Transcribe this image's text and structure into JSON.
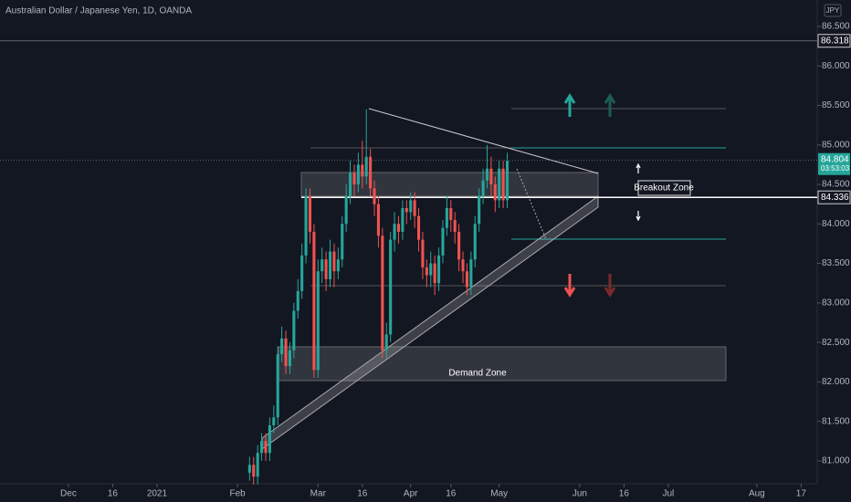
{
  "chart_data": {
    "type": "candlestick",
    "title": "Australian Dollar / Japanese Yen, 1D, OANDA",
    "currency": "JPY",
    "up_color": "#26a69a",
    "down_color": "#ef5350",
    "x": [
      45,
      46,
      47,
      48,
      49,
      50,
      51,
      52,
      53,
      54,
      55,
      56,
      57,
      58,
      59,
      60,
      61,
      62,
      63,
      64,
      65,
      66,
      67,
      68,
      69,
      70,
      71,
      72,
      73,
      74,
      75,
      76,
      77,
      78,
      79,
      80,
      81,
      82,
      83,
      84,
      85,
      86,
      87,
      88,
      89,
      90,
      91,
      92,
      93,
      94,
      95,
      96,
      97,
      98,
      99,
      100,
      101,
      102,
      103,
      104,
      105,
      106,
      107,
      108,
      109
    ],
    "open": [
      80.85,
      80.95,
      80.8,
      81.1,
      81.25,
      81.1,
      81.45,
      81.55,
      82.35,
      82.55,
      82.2,
      82.4,
      82.9,
      83.15,
      83.6,
      84.35,
      83.9,
      82.15,
      83.4,
      83.55,
      83.3,
      83.65,
      83.4,
      83.55,
      84.0,
      84.35,
      84.65,
      84.5,
      84.75,
      84.6,
      84.85,
      84.45,
      84.25,
      83.85,
      82.4,
      82.6,
      83.8,
      84.0,
      83.9,
      84.2,
      84.15,
      84.3,
      84.1,
      83.8,
      83.45,
      83.35,
      83.5,
      83.25,
      83.6,
      83.95,
      84.2,
      84.05,
      83.9,
      83.55,
      83.4,
      83.2,
      83.55,
      84.0,
      84.35,
      84.55,
      84.7,
      84.5,
      84.3,
      84.7,
      84.3
    ],
    "high": [
      81.05,
      81.05,
      81.2,
      81.35,
      81.35,
      81.55,
      81.7,
      82.45,
      82.7,
      82.65,
      82.5,
      83.0,
      83.3,
      83.75,
      84.45,
      84.45,
      84.0,
      83.55,
      83.7,
      83.65,
      83.8,
      83.75,
      83.7,
      84.1,
      84.5,
      84.8,
      84.75,
      84.9,
      85.05,
      85.45,
      84.95,
      84.55,
      84.35,
      83.95,
      82.75,
      83.9,
      84.15,
      84.1,
      84.3,
      84.3,
      84.4,
      84.4,
      84.2,
      83.9,
      83.55,
      83.65,
      83.6,
      83.7,
      84.05,
      84.35,
      84.3,
      84.15,
      84.0,
      83.65,
      83.5,
      83.65,
      84.1,
      84.45,
      84.7,
      85.0,
      84.85,
      84.6,
      84.8,
      84.8,
      84.9
    ],
    "low": [
      80.75,
      80.7,
      80.7,
      81.0,
      81.0,
      81.0,
      81.35,
      81.45,
      82.25,
      82.1,
      82.1,
      82.3,
      82.8,
      83.05,
      83.5,
      83.75,
      82.05,
      82.05,
      83.25,
      83.15,
      83.2,
      83.2,
      83.3,
      83.45,
      83.9,
      84.25,
      84.35,
      84.4,
      84.45,
      84.5,
      84.35,
      84.1,
      83.7,
      82.3,
      82.3,
      82.5,
      83.65,
      83.75,
      83.8,
      84.0,
      84.05,
      83.95,
      83.65,
      83.3,
      83.2,
      83.2,
      83.1,
      83.15,
      83.5,
      83.85,
      83.9,
      83.75,
      83.4,
      83.25,
      83.1,
      83.1,
      83.45,
      83.9,
      84.25,
      84.45,
      84.35,
      84.15,
      84.2,
      84.2,
      84.2
    ],
    "close": [
      80.95,
      80.8,
      81.1,
      81.25,
      81.1,
      81.45,
      81.55,
      82.35,
      82.55,
      82.2,
      82.4,
      82.9,
      83.15,
      83.6,
      84.35,
      83.9,
      82.15,
      83.4,
      83.55,
      83.3,
      83.65,
      83.4,
      83.55,
      84.0,
      84.35,
      84.65,
      84.5,
      84.75,
      84.6,
      84.85,
      84.45,
      84.25,
      83.85,
      82.4,
      82.6,
      83.8,
      84.0,
      83.9,
      84.2,
      84.15,
      84.3,
      84.1,
      83.8,
      83.45,
      83.35,
      83.5,
      83.25,
      83.6,
      83.95,
      84.2,
      84.05,
      83.9,
      83.55,
      83.4,
      83.2,
      83.55,
      84.0,
      84.35,
      84.55,
      84.7,
      84.5,
      84.3,
      84.7,
      84.3,
      84.8
    ],
    "xlim": [
      -17,
      186
    ],
    "xticks": [
      {
        "value": 0,
        "label": "Dec"
      },
      {
        "value": 11,
        "label": "16"
      },
      {
        "value": 22,
        "label": "2021"
      },
      {
        "value": 42,
        "label": "Feb"
      },
      {
        "value": 62,
        "label": "Mar"
      },
      {
        "value": 73,
        "label": "16"
      },
      {
        "value": 85,
        "label": "Apr"
      },
      {
        "value": 95,
        "label": "16"
      },
      {
        "value": 107,
        "label": "May"
      },
      {
        "value": 127,
        "label": "Jun"
      },
      {
        "value": 138,
        "label": "16"
      },
      {
        "value": 149,
        "label": "Jul"
      },
      {
        "value": 171,
        "label": "Aug"
      },
      {
        "value": 182,
        "label": "17"
      }
    ],
    "ylim": [
      80.71,
      86.835
    ],
    "yticks": [
      {
        "value": 86.5,
        "label": "86.500"
      },
      {
        "value": 86,
        "label": "86.000"
      },
      {
        "value": 85.5,
        "label": "85.500"
      },
      {
        "value": 85,
        "label": "85.000"
      },
      {
        "value": 84.5,
        "label": "84.500"
      },
      {
        "value": 84,
        "label": "84.000"
      },
      {
        "value": 83.5,
        "label": "83.500"
      },
      {
        "value": 83,
        "label": "83.000"
      },
      {
        "value": 82.5,
        "label": "82.500"
      },
      {
        "value": 82,
        "label": "82.000"
      },
      {
        "value": 81.5,
        "label": "81.500"
      },
      {
        "value": 81,
        "label": "81.000"
      }
    ],
    "price_lines": [
      {
        "value": 86.318,
        "color": "#787b86"
      },
      {
        "value": 84.336,
        "color": "#ffffff"
      }
    ],
    "last_price": {
      "value": 84.804,
      "countdown": "03:53:03",
      "color": "#26a69a"
    },
    "annotations": [
      "Breakout Zone",
      "Demand Zone"
    ]
  }
}
